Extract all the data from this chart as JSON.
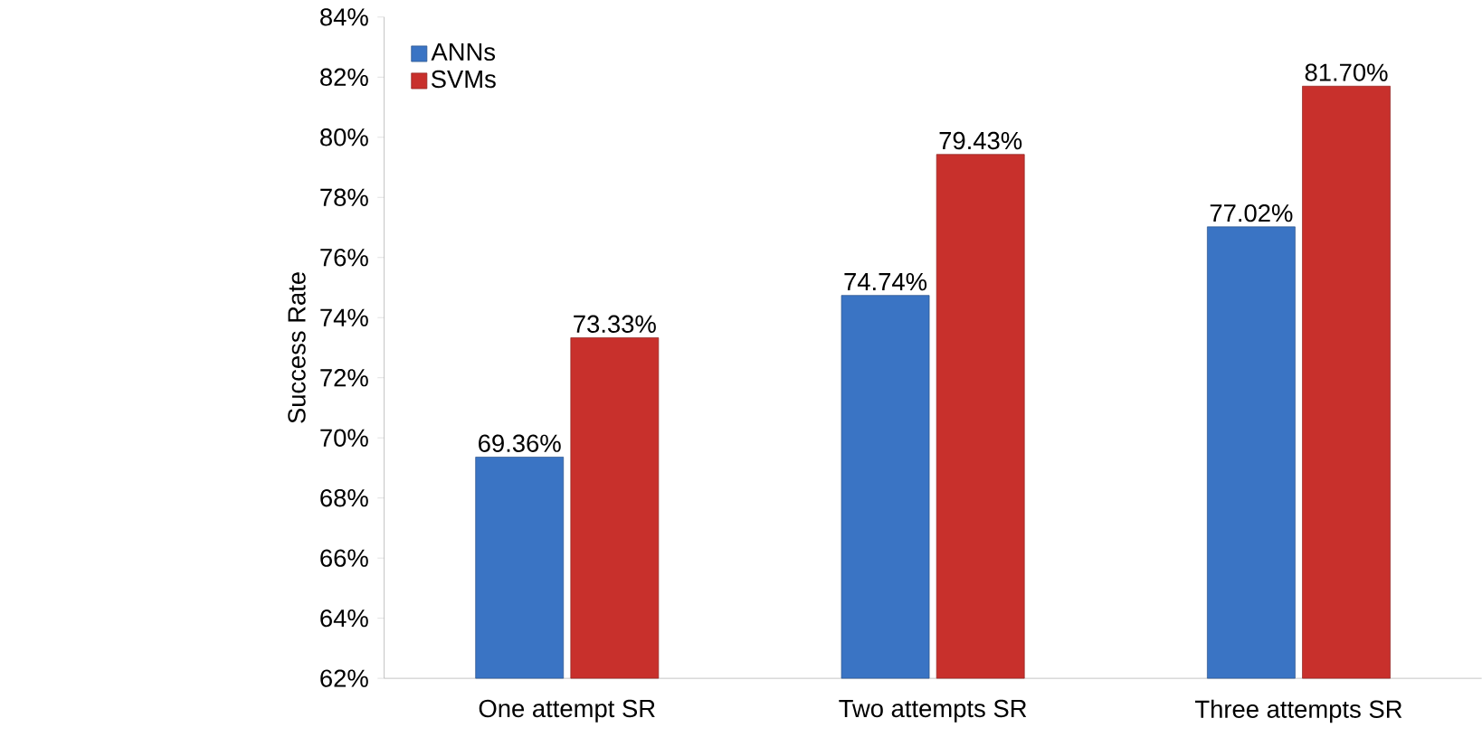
{
  "chart_data": {
    "type": "bar",
    "ylabel": "Success Rate",
    "categories": [
      "One attempt SR",
      "Two attempts SR",
      "Three attempts SR"
    ],
    "series": [
      {
        "name": "ANNs",
        "color": "#3a74c4",
        "values": [
          69.36,
          74.74,
          77.02
        ],
        "value_labels": [
          "69.36%",
          "74.74%",
          "77.02%"
        ]
      },
      {
        "name": "SVMs",
        "color": "#c8302c",
        "values": [
          73.33,
          79.43,
          81.7
        ],
        "value_labels": [
          "73.33%",
          "79.43%",
          "81.70%"
        ]
      }
    ],
    "ylim": [
      62,
      84
    ],
    "yticks": [
      {
        "value": 62,
        "label": "62%"
      },
      {
        "value": 64,
        "label": "64%"
      },
      {
        "value": 66,
        "label": "66%"
      },
      {
        "value": 68,
        "label": "68%"
      },
      {
        "value": 70,
        "label": "70%"
      },
      {
        "value": 72,
        "label": "72%"
      },
      {
        "value": 74,
        "label": "74%"
      },
      {
        "value": 76,
        "label": "76%"
      },
      {
        "value": 78,
        "label": "78%"
      },
      {
        "value": 80,
        "label": "80%"
      },
      {
        "value": 82,
        "label": "82%"
      },
      {
        "value": 84,
        "label": "84%"
      }
    ],
    "grid": false,
    "legend": "top left"
  }
}
